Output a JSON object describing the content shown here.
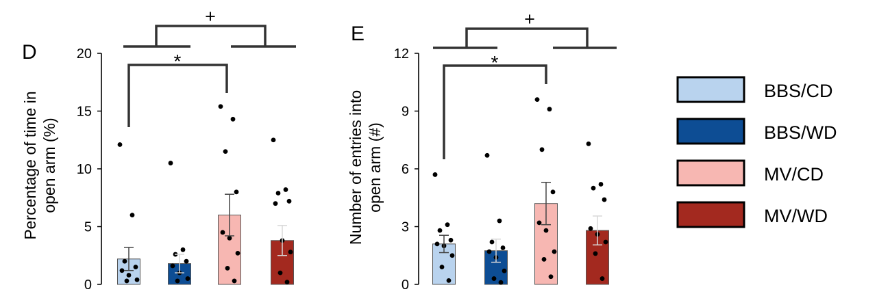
{
  "panels": [
    {
      "panel_label": "D",
      "ylabel_line1": "Percentage of time in",
      "ylabel_line2": "open arm (%)",
      "sig_top": "+",
      "sig_inner": "*"
    },
    {
      "panel_label": "E",
      "ylabel_line1": "Number of entries into",
      "ylabel_line2": "open arm (#)",
      "sig_top": "+",
      "sig_inner": "*"
    }
  ],
  "legend": [
    {
      "label": "BBS/CD",
      "color": "#b9d3ee"
    },
    {
      "label": "BBS/WD",
      "color": "#0d4d94"
    },
    {
      "label": "MV/CD",
      "color": "#f7b7b2"
    },
    {
      "label": "MV/WD",
      "color": "#a3291f"
    }
  ],
  "chart_data": [
    {
      "type": "bar",
      "panel": "D",
      "title": "",
      "xlabel": "",
      "ylabel": "Percentage of time in open arm (%)",
      "categories": [
        "BBS/CD",
        "BBS/WD",
        "MV/CD",
        "MV/WD"
      ],
      "colors": [
        "#b9d3ee",
        "#0d4d94",
        "#f7b7b2",
        "#a3291f"
      ],
      "values": [
        2.2,
        1.8,
        6.0,
        3.8
      ],
      "errors": [
        1.0,
        0.8,
        1.8,
        1.3
      ],
      "points": [
        [
          12.1,
          6.0,
          2.0,
          1.5,
          1.2,
          0.8,
          0.4,
          0.3
        ],
        [
          10.5,
          3.0,
          2.6,
          2.0,
          1.6,
          1.0,
          0.5,
          0.3
        ],
        [
          15.4,
          14.3,
          11.5,
          8.0,
          4.5,
          4.0,
          2.7,
          1.4,
          0.3
        ],
        [
          12.5,
          8.2,
          7.9,
          7.2,
          7.0,
          3.8,
          2.8,
          1.0,
          0.2
        ]
      ],
      "ylim": [
        0,
        20
      ],
      "yticks": [
        "0",
        "5",
        "10",
        "15",
        "20"
      ],
      "significance": [
        {
          "label": "*",
          "between": [
            "BBS/CD",
            "MV/CD"
          ]
        },
        {
          "label": "+",
          "between": [
            "BBS",
            "MV"
          ]
        }
      ]
    },
    {
      "type": "bar",
      "panel": "E",
      "title": "",
      "xlabel": "",
      "ylabel": "Number of entries into open arm (#)",
      "categories": [
        "BBS/CD",
        "BBS/WD",
        "MV/CD",
        "MV/WD"
      ],
      "colors": [
        "#b9d3ee",
        "#0d4d94",
        "#f7b7b2",
        "#a3291f"
      ],
      "values": [
        2.1,
        1.75,
        4.2,
        2.8
      ],
      "errors": [
        0.45,
        0.6,
        1.1,
        0.75
      ],
      "points": [
        [
          5.7,
          3.1,
          2.8,
          2.3,
          2.1,
          2.0,
          1.5,
          0.9,
          0.2
        ],
        [
          6.7,
          3.3,
          2.2,
          1.9,
          1.7,
          1.4,
          0.7,
          0.3,
          0.1
        ],
        [
          9.6,
          9.1,
          7.0,
          4.8,
          3.2,
          2.8,
          1.7,
          1.3,
          0.4
        ],
        [
          7.3,
          5.2,
          5.0,
          4.4,
          2.9,
          2.6,
          2.2,
          1.6,
          0.3
        ]
      ],
      "ylim": [
        0,
        12
      ],
      "yticks": [
        "0",
        "3",
        "6",
        "9",
        "12"
      ],
      "significance": [
        {
          "label": "*",
          "between": [
            "BBS/CD",
            "MV/CD"
          ]
        },
        {
          "label": "+",
          "between": [
            "BBS",
            "MV"
          ]
        }
      ]
    }
  ]
}
